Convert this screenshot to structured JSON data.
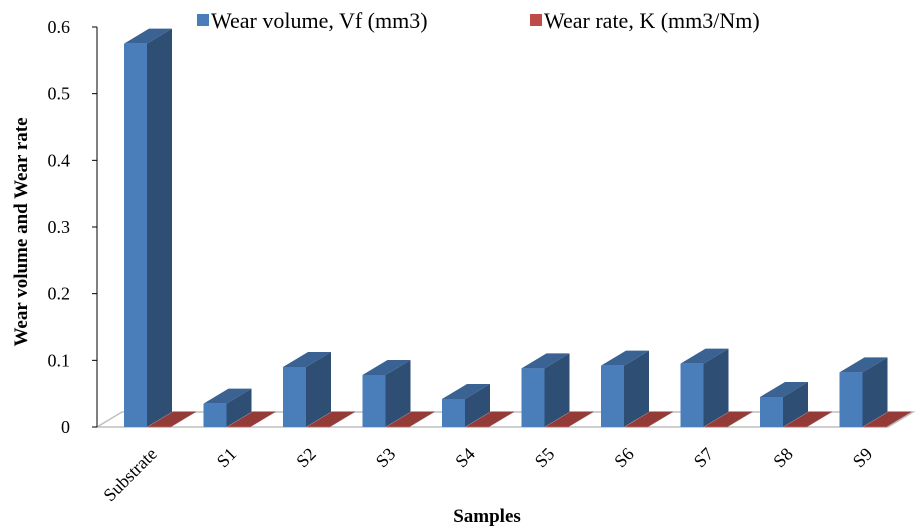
{
  "chart_data": {
    "type": "bar",
    "title": "",
    "xlabel": "Samples",
    "ylabel": "Wear volume and Wear rate",
    "ylim": [
      0,
      0.6
    ],
    "yticks": [
      "0",
      "0.1",
      "0.2",
      "0.3",
      "0.4",
      "0.5",
      "0.6"
    ],
    "categories": [
      "Substrate",
      "S1",
      "S2",
      "S3",
      "S4",
      "S5",
      "S6",
      "S7",
      "S8",
      "S9"
    ],
    "series": [
      {
        "name": "Wear volume, Vf (mm3)",
        "color": "#4a7ebb",
        "values": [
          0.575,
          0.035,
          0.09,
          0.078,
          0.042,
          0.088,
          0.092,
          0.095,
          0.045,
          0.082
        ]
      },
      {
        "name": "Wear rate, K (mm3/Nm)",
        "color": "#be4b48",
        "values": [
          0.0005,
          0.0005,
          0.0005,
          0.0005,
          0.0005,
          0.0005,
          0.0005,
          0.0005,
          0.0005,
          0.0005
        ]
      }
    ],
    "legend_position": "top",
    "grid": false,
    "style": "3d-clustered-column"
  }
}
